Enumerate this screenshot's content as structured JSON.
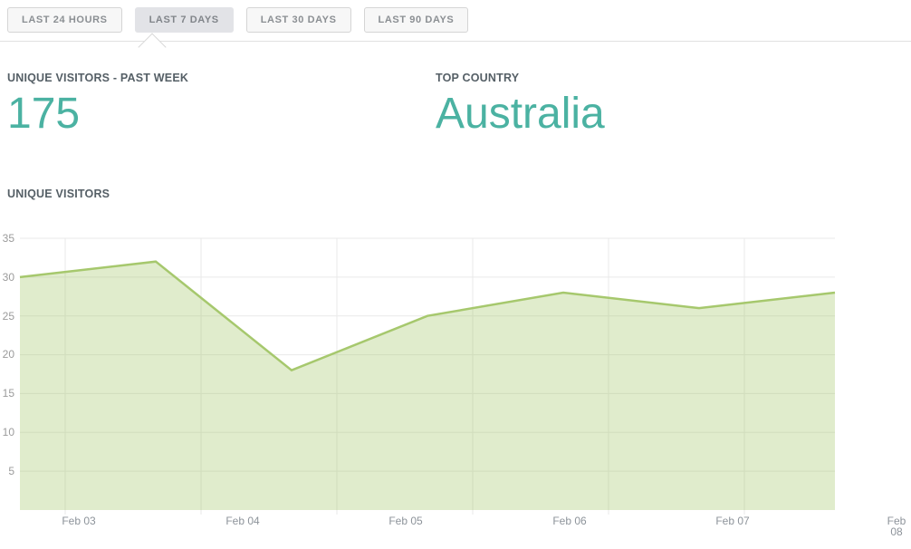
{
  "tabs": {
    "items": [
      {
        "label": "LAST 24 HOURS",
        "active": false
      },
      {
        "label": "LAST 7 DAYS",
        "active": true
      },
      {
        "label": "LAST 30 DAYS",
        "active": false
      },
      {
        "label": "LAST 90 DAYS",
        "active": false
      }
    ]
  },
  "stats": {
    "unique_visitors_week": {
      "label": "UNIQUE VISITORS - PAST WEEK",
      "value": "175"
    },
    "top_country": {
      "label": "TOP COUNTRY",
      "value": "Australia"
    }
  },
  "chart": {
    "title": "UNIQUE VISITORS"
  },
  "chart_data": {
    "type": "area",
    "title": "UNIQUE VISITORS",
    "x_labels": [
      "Feb 03",
      "Feb 04",
      "Feb 05",
      "Feb 06",
      "Feb 07",
      "Feb 08"
    ],
    "values": [
      30,
      32,
      18,
      25,
      28,
      26,
      28
    ],
    "yticks": [
      35,
      30,
      25,
      20,
      15,
      10,
      5
    ],
    "ylim": [
      0,
      35
    ],
    "grid": true,
    "legend": false,
    "colors": {
      "line": "#a6c86d",
      "fill": "rgba(166,200,109,0.35)",
      "grid": "#e9e9e9",
      "y_tick_text": "#9b9b9b",
      "x_tick_text": "#8d939a"
    }
  },
  "colors": {
    "accent_teal": "#4bb2a2",
    "heading_text": "#555f66",
    "tab_text": "#8b8f93",
    "tab_active_bg": "#e2e3e7",
    "divider": "#e1e1e1"
  }
}
